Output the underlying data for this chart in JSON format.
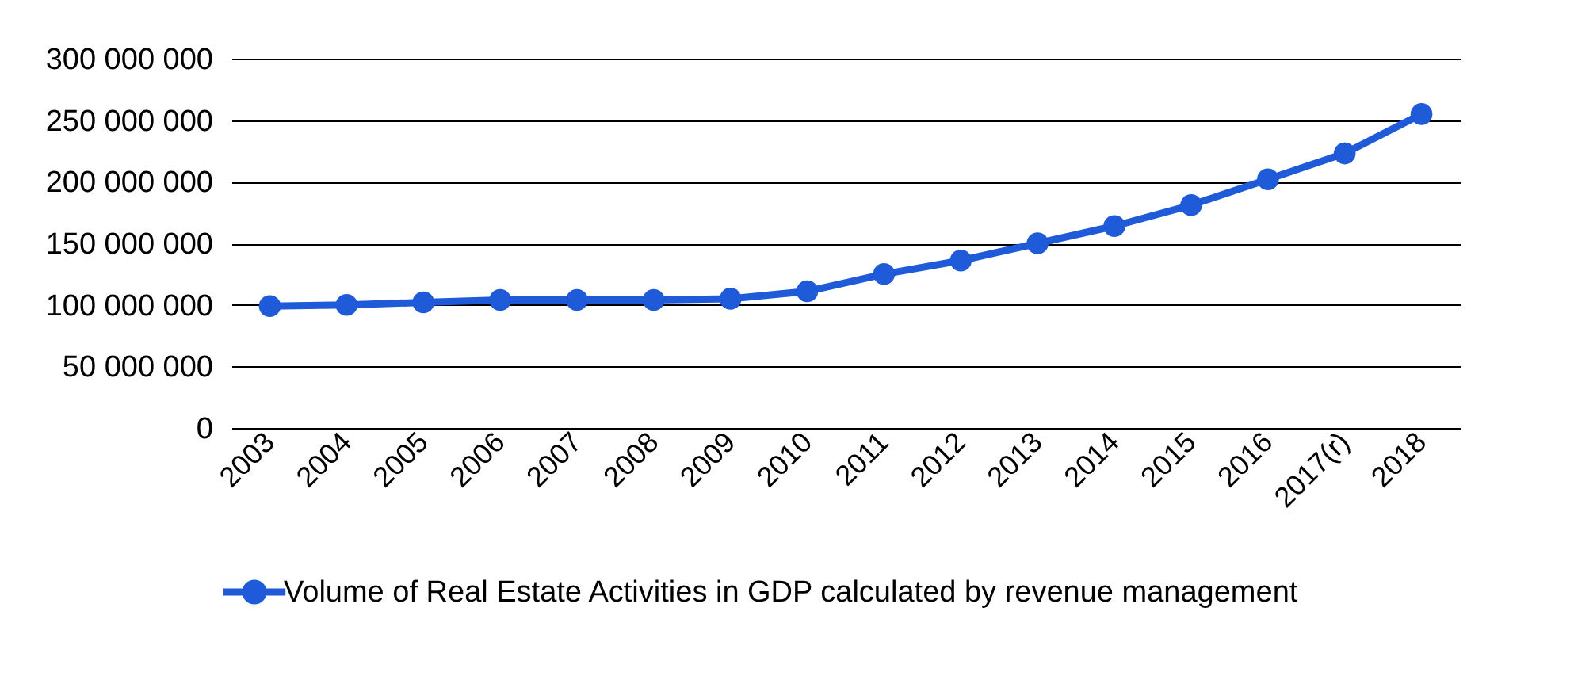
{
  "chart_data": {
    "type": "line",
    "categories": [
      "2003",
      "2004",
      "2005",
      "2006",
      "2007",
      "2008",
      "2009",
      "2010",
      "2011",
      "2012",
      "2013",
      "2014",
      "2015",
      "2016",
      "2017(r)",
      "2018"
    ],
    "series": [
      {
        "name": "Volume of Real Estate Activities in GDP calculated by revenue management",
        "color": "#1f5bd8",
        "values": [
          99000000,
          100000000,
          102000000,
          104000000,
          104000000,
          104000000,
          105000000,
          111000000,
          125000000,
          136000000,
          150000000,
          164000000,
          181000000,
          202000000,
          223000000,
          255000000
        ]
      }
    ],
    "ylim": [
      0,
      300000000
    ],
    "yticks": [
      {
        "value": 0,
        "label": "0"
      },
      {
        "value": 50000000,
        "label": "50 000 000"
      },
      {
        "value": 100000000,
        "label": "100 000 000"
      },
      {
        "value": 150000000,
        "label": "150 000 000"
      },
      {
        "value": 200000000,
        "label": "200 000 000"
      },
      {
        "value": 250000000,
        "label": "250 000 000"
      },
      {
        "value": 300000000,
        "label": "300 000 000"
      }
    ],
    "grid": "y",
    "legend": "bottom",
    "marker": "circle",
    "line_style": "solid"
  }
}
